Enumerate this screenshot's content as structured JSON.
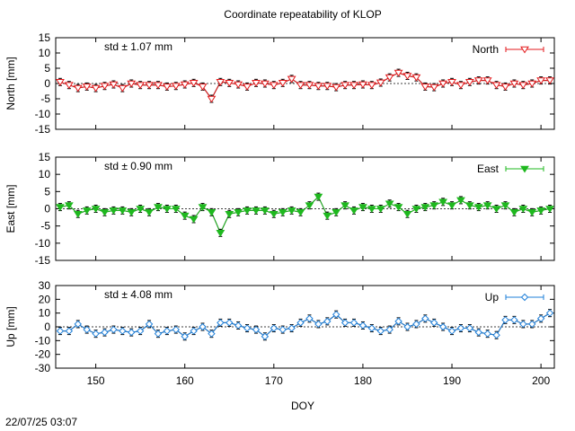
{
  "title": "Coordinate repeatability of KLOP",
  "xlabel": "DOY",
  "timestamp": "22/07/25 03:07",
  "xrange": [
    145.5,
    201.5
  ],
  "xticks": [
    150,
    160,
    170,
    180,
    190,
    200
  ],
  "chart_data": [
    {
      "type": "line",
      "ylabel": "North [mm]",
      "series_name": "North",
      "std_label": "std ± 1.07 mm",
      "color": "#e31a1c",
      "marker": "triangle-down-open",
      "ylim": [
        -15,
        15
      ],
      "yticks": [
        15,
        10,
        5,
        0,
        -5,
        -10,
        -15
      ],
      "x": [
        146,
        147,
        148,
        149,
        150,
        151,
        152,
        153,
        154,
        155,
        156,
        157,
        158,
        159,
        160,
        161,
        162,
        163,
        164,
        165,
        166,
        167,
        168,
        169,
        170,
        171,
        172,
        173,
        174,
        175,
        176,
        177,
        178,
        179,
        180,
        181,
        182,
        183,
        184,
        185,
        186,
        187,
        188,
        189,
        190,
        191,
        192,
        193,
        194,
        195,
        196,
        197,
        198,
        199,
        200,
        201
      ],
      "y": [
        0.5,
        -0.5,
        -1.5,
        -1,
        -1.5,
        -0.8,
        -0.3,
        -1.5,
        0,
        -0.5,
        -0.5,
        -0.5,
        -1,
        -0.8,
        -0.3,
        0.2,
        -1,
        -5,
        0.5,
        0.2,
        -0.3,
        -1,
        0.2,
        0,
        -0.5,
        0.2,
        1.5,
        -0.5,
        -0.5,
        -0.8,
        -0.8,
        -1.2,
        -0.5,
        -0.5,
        -0.3,
        -0.5,
        0.3,
        2,
        3.5,
        2.5,
        2,
        -1,
        -1.2,
        0,
        0.5,
        -0.5,
        0.5,
        1,
        1,
        -0.5,
        -1,
        0,
        -0.5,
        0,
        1,
        1
      ]
    },
    {
      "type": "line",
      "ylabel": "East [mm]",
      "series_name": "East",
      "std_label": "std ± 0.90 mm",
      "color": "#1fb81f",
      "marker": "triangle-down-filled",
      "ylim": [
        -15,
        15
      ],
      "yticks": [
        15,
        10,
        5,
        0,
        -5,
        -10,
        -15
      ],
      "x": [
        146,
        147,
        148,
        149,
        150,
        151,
        152,
        153,
        154,
        155,
        156,
        157,
        158,
        159,
        160,
        161,
        162,
        163,
        164,
        165,
        166,
        167,
        168,
        169,
        170,
        171,
        172,
        173,
        174,
        175,
        176,
        177,
        178,
        179,
        180,
        181,
        182,
        183,
        184,
        185,
        186,
        187,
        188,
        189,
        190,
        191,
        192,
        193,
        194,
        195,
        196,
        197,
        198,
        199,
        200,
        201
      ],
      "y": [
        0.5,
        1,
        -1.5,
        -0.5,
        0,
        -1,
        -0.5,
        -0.5,
        -1,
        0,
        -1,
        0.5,
        0,
        0,
        -2,
        -3,
        0.5,
        -1,
        -7,
        -1.5,
        -1,
        -0.5,
        -0.5,
        -0.5,
        -1.5,
        -1,
        -0.5,
        -1,
        1,
        3.5,
        -2,
        -1,
        1,
        -0.5,
        0.5,
        0,
        0,
        1.5,
        0.5,
        -1.5,
        0,
        0.5,
        1,
        2,
        1,
        2.5,
        1,
        0.5,
        1,
        0,
        1,
        -1,
        0,
        -1,
        -0.5,
        0
      ]
    },
    {
      "type": "line",
      "ylabel": "Up [mm]",
      "series_name": "Up",
      "std_label": "std ± 4.08 mm",
      "color": "#1e7fd9",
      "marker": "diamond-open",
      "ylim": [
        -30,
        30
      ],
      "yticks": [
        30,
        20,
        10,
        0,
        -10,
        -20,
        -30
      ],
      "x": [
        146,
        147,
        148,
        149,
        150,
        151,
        152,
        153,
        154,
        155,
        156,
        157,
        158,
        159,
        160,
        161,
        162,
        163,
        164,
        165,
        166,
        167,
        168,
        169,
        170,
        171,
        172,
        173,
        174,
        175,
        176,
        177,
        178,
        179,
        180,
        181,
        182,
        183,
        184,
        185,
        186,
        187,
        188,
        189,
        190,
        191,
        192,
        193,
        194,
        195,
        196,
        197,
        198,
        199,
        200,
        201
      ],
      "y": [
        -3,
        -3,
        2,
        -2,
        -5,
        -4,
        -2,
        -3,
        -4,
        -3,
        2,
        -5,
        -3,
        -2,
        -7,
        -3,
        0,
        -5,
        3,
        3,
        1,
        -1,
        -2,
        -7,
        -1,
        -2,
        -1,
        3,
        6,
        2,
        4,
        9,
        3,
        3,
        1,
        -1,
        -3,
        -2,
        4,
        0,
        2,
        6,
        3,
        0,
        -3,
        -1,
        -1,
        -4,
        -5,
        -6,
        5,
        5,
        2,
        2,
        6,
        10
      ]
    }
  ]
}
